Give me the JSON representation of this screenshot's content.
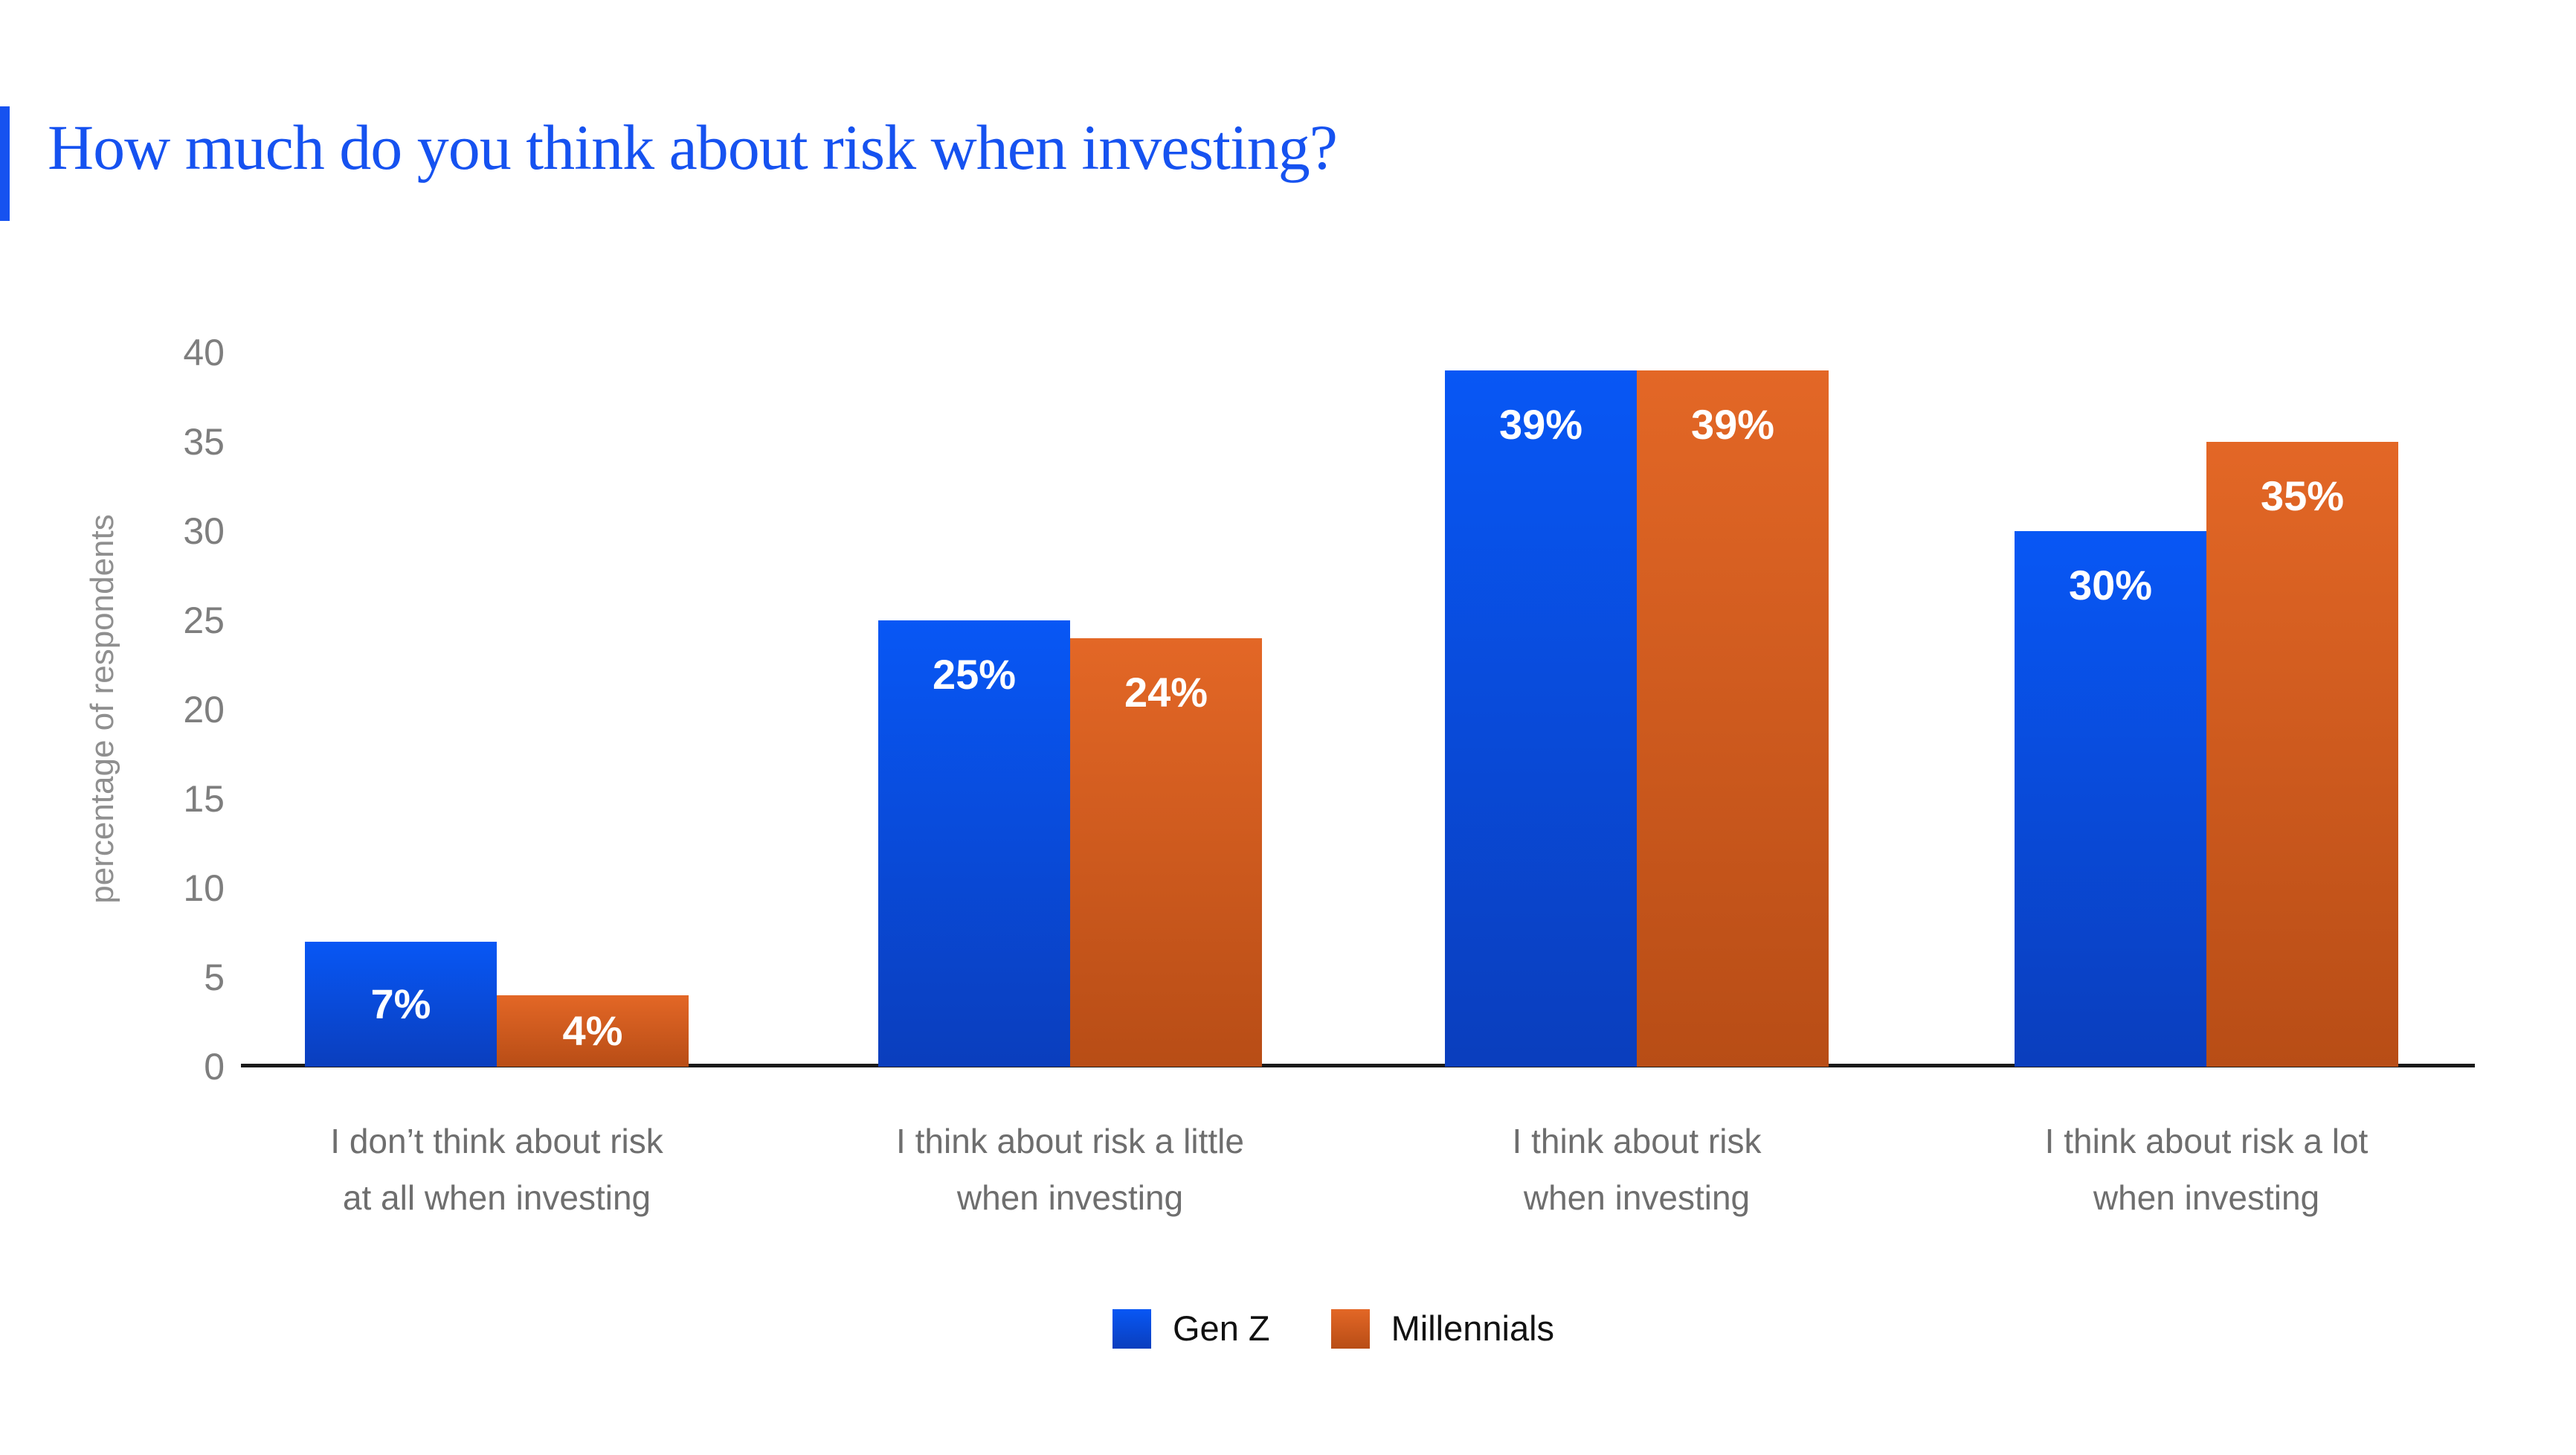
{
  "header": {
    "title": "How much do you think about risk when investing?",
    "title_color": "#1652F0"
  },
  "chart_data": {
    "type": "bar",
    "title": "How much do you think about risk when investing?",
    "ylabel": "percentage of respondents",
    "xlabel": "",
    "ylim": [
      0,
      40
    ],
    "ytick_step": 5,
    "yticks": [
      0,
      5,
      10,
      15,
      20,
      25,
      30,
      35,
      40
    ],
    "grid": false,
    "legend_position": "bottom",
    "value_suffix": "%",
    "categories": [
      "I don’t think about risk\nat all when investing",
      "I think about risk a little\nwhen investing",
      "I think about risk\nwhen investing",
      "I think about risk a lot\nwhen investing"
    ],
    "series": [
      {
        "name": "Gen Z",
        "values": [
          7,
          25,
          39,
          30
        ],
        "color_top": "#0857F5",
        "color_bottom": "#0A3EBD"
      },
      {
        "name": "Millennials",
        "values": [
          4,
          24,
          39,
          35
        ],
        "color_top": "#E36726",
        "color_bottom": "#B84D16"
      }
    ]
  },
  "colors": {
    "title_color": "#1652F0",
    "title_accent": "#1652F0",
    "axis_line": "#1A1A1A",
    "tick_label": "#7E7E7E",
    "category_label": "#6E6E6E",
    "axis_title": "#8F8F8F",
    "legend_text": "#111111",
    "bar_value_label": "#FFFFFF"
  }
}
